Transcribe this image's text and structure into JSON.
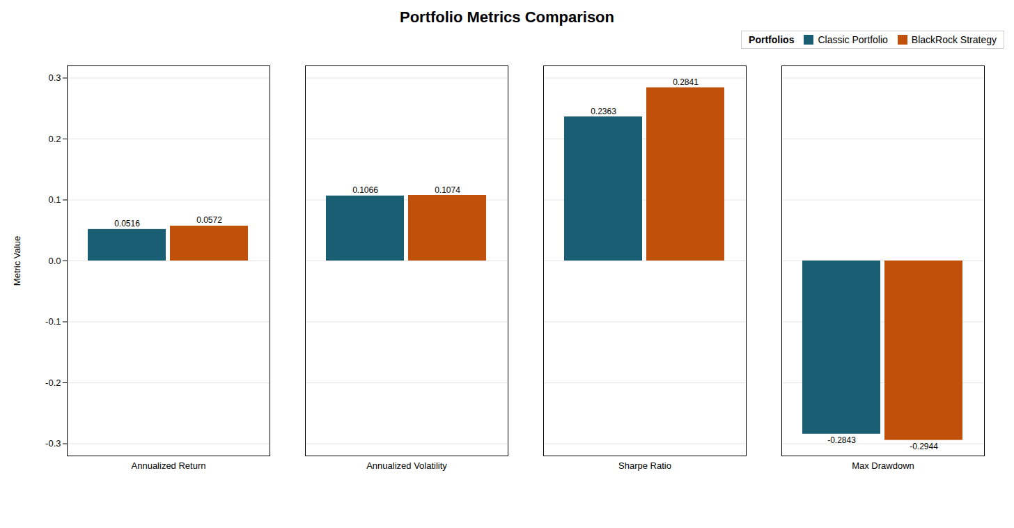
{
  "chart_data": {
    "type": "bar",
    "title": "Portfolio Metrics Comparison",
    "y_label": "Metric Value",
    "categories": [
      "Annualized Return",
      "Annualized Volatility",
      "Sharpe Ratio",
      "Max Drawdown"
    ],
    "series": [
      {
        "name": "Classic Portfolio",
        "color": "#1a5e73",
        "values": [
          0.0516,
          0.1066,
          0.2363,
          -0.2843
        ]
      },
      {
        "name": "BlackRock Strategy",
        "color": "#c0500a",
        "values": [
          0.0572,
          0.1074,
          0.2841,
          -0.2944
        ]
      }
    ],
    "legend_title": "Portfolios",
    "legend": "upper right",
    "ylim": [
      -0.32,
      0.32
    ],
    "yticks": [
      -0.3,
      -0.2,
      -0.1,
      {
        "value": 0.0,
        "label": "0.0"
      },
      0.1,
      0.2,
      0.3
    ],
    "grid": true,
    "data_labels": true
  }
}
